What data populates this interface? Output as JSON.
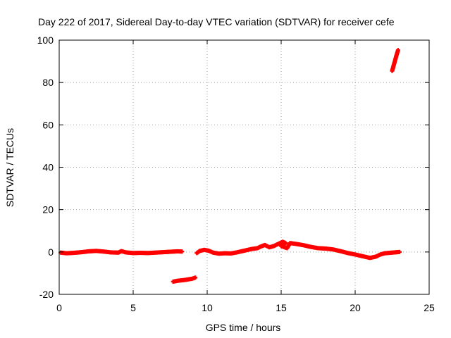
{
  "chart_data": {
    "type": "scatter",
    "title": "Day 222 of 2017, Sidereal Day-to-day VTEC variation (SDTVAR) for receiver cefe",
    "xlabel": "GPS time / hours",
    "ylabel": "SDTVAR / TECUs",
    "xlim": [
      0,
      25
    ],
    "ylim": [
      -20,
      100
    ],
    "x_ticks": [
      0,
      5,
      10,
      15,
      20,
      25
    ],
    "y_ticks": [
      -20,
      0,
      20,
      40,
      60,
      80,
      100
    ],
    "grid": true,
    "legend": "none",
    "series_color": "#ff0000",
    "series": [
      {
        "name": "segment-1",
        "points": [
          [
            0.1,
            -0.3
          ],
          [
            0.5,
            -0.6
          ],
          [
            1.0,
            -0.4
          ],
          [
            1.5,
            -0.1
          ],
          [
            2.0,
            0.3
          ],
          [
            2.5,
            0.5
          ],
          [
            3.0,
            0.2
          ],
          [
            3.5,
            -0.2
          ],
          [
            4.0,
            -0.3
          ],
          [
            4.2,
            0.4
          ],
          [
            4.5,
            -0.2
          ],
          [
            5.0,
            -0.5
          ],
          [
            5.5,
            -0.4
          ],
          [
            6.0,
            -0.5
          ],
          [
            6.5,
            -0.3
          ],
          [
            7.0,
            -0.1
          ],
          [
            7.5,
            0.1
          ],
          [
            8.0,
            0.3
          ],
          [
            8.3,
            0.2
          ]
        ]
      },
      {
        "name": "segment-2",
        "points": [
          [
            7.7,
            -14.0
          ],
          [
            8.0,
            -13.6
          ],
          [
            8.5,
            -13.2
          ],
          [
            9.0,
            -12.6
          ],
          [
            9.2,
            -12.1
          ]
        ]
      },
      {
        "name": "segment-3",
        "points": [
          [
            9.3,
            -0.5
          ],
          [
            9.5,
            0.5
          ],
          [
            9.8,
            1.0
          ],
          [
            10.1,
            0.6
          ],
          [
            10.4,
            -0.3
          ],
          [
            10.8,
            -0.8
          ],
          [
            11.2,
            -0.6
          ],
          [
            11.6,
            -0.7
          ],
          [
            12.0,
            -0.2
          ],
          [
            12.5,
            0.6
          ],
          [
            13.0,
            1.4
          ],
          [
            13.4,
            1.8
          ],
          [
            13.6,
            2.5
          ],
          [
            13.9,
            3.3
          ],
          [
            14.2,
            2.2
          ],
          [
            14.5,
            2.8
          ],
          [
            14.8,
            3.8
          ],
          [
            15.1,
            4.8
          ],
          [
            15.3,
            4.2
          ],
          [
            15.0,
            2.8
          ],
          [
            15.4,
            1.8
          ],
          [
            15.6,
            4.2
          ],
          [
            16.0,
            3.8
          ],
          [
            16.5,
            3.2
          ],
          [
            17.0,
            2.4
          ],
          [
            17.5,
            1.8
          ],
          [
            18.0,
            1.6
          ],
          [
            18.5,
            1.2
          ],
          [
            19.0,
            0.4
          ],
          [
            19.5,
            -0.5
          ],
          [
            20.0,
            -1.2
          ],
          [
            20.5,
            -2.0
          ],
          [
            21.0,
            -2.8
          ],
          [
            21.4,
            -2.2
          ],
          [
            21.7,
            -1.2
          ],
          [
            22.0,
            -0.6
          ],
          [
            22.5,
            -0.3
          ],
          [
            23.0,
            0.0
          ]
        ]
      },
      {
        "name": "segment-4",
        "points": [
          [
            22.5,
            85.5
          ],
          [
            22.6,
            88.0
          ],
          [
            22.7,
            90.5
          ],
          [
            22.8,
            93.0
          ],
          [
            22.9,
            95.3
          ]
        ]
      }
    ]
  }
}
